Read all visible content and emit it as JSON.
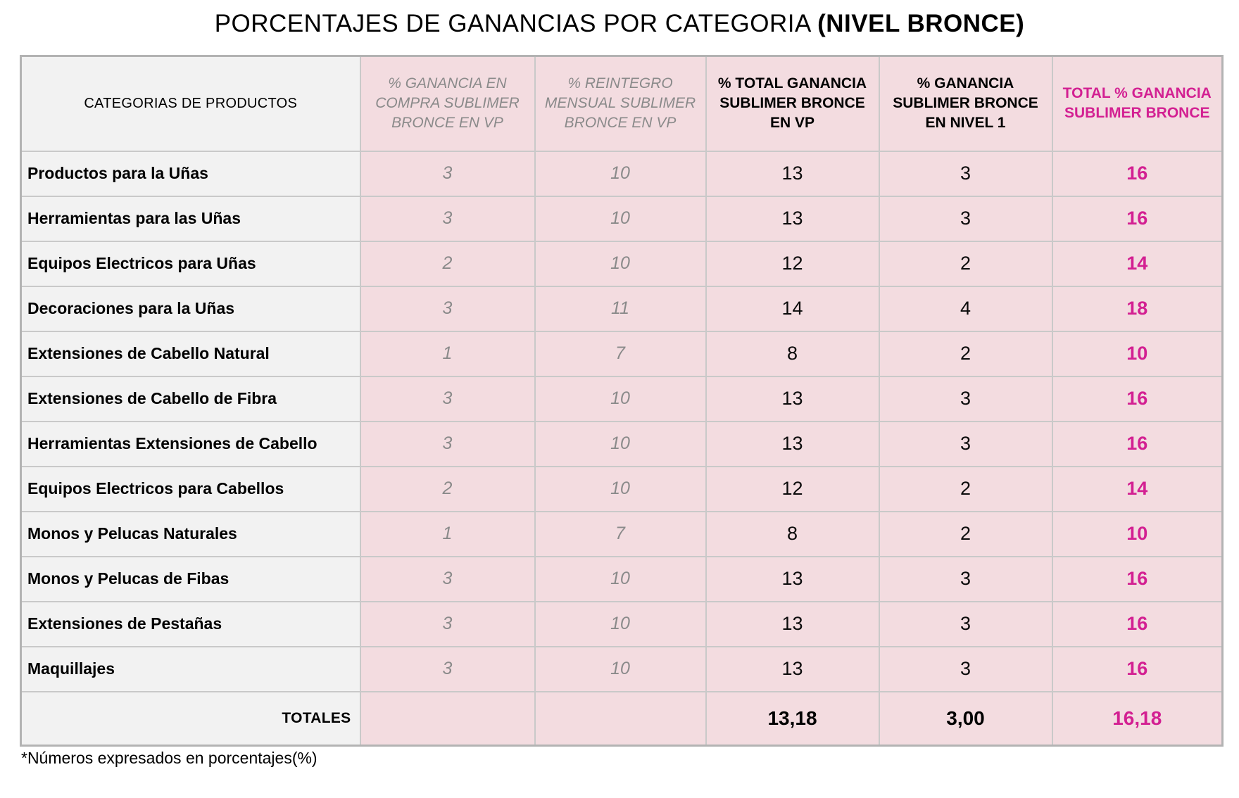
{
  "title": {
    "main": "PORCENTAJES DE GANANCIAS POR CATEGORIA",
    "level": "(NIVEL BRONCE)"
  },
  "table": {
    "headers": [
      "CATEGORIAS DE PRODUCTOS",
      "% GANANCIA EN\nCOMPRA  SUBLIMER\nBRONCE EN VP",
      "% REINTEGRO\nMENSUAL  SUBLIMER\nBRONCE EN VP",
      "% TOTAL GANANCIA\nSUBLIMER BRONCE\nEN VP",
      "% GANANCIA\nSUBLIMER BRONCE\nEN NIVEL 1",
      "TOTAL % GANANCIA\nSUBLIMER BRONCE"
    ],
    "totals": {
      "label": "TOTALES",
      "total_vp": "13,18",
      "nivel1": "3,00",
      "total": "16,18"
    }
  },
  "chart_data": {
    "type": "table",
    "title": "PORCENTAJES DE GANANCIAS POR CATEGORIA (NIVEL BRONCE)",
    "columns": [
      "CATEGORIAS DE PRODUCTOS",
      "% GANANCIA EN COMPRA SUBLIMER BRONCE EN VP",
      "% REINTEGRO MENSUAL SUBLIMER BRONCE EN VP",
      "% TOTAL GANANCIA SUBLIMER BRONCE EN VP",
      "% GANANCIA SUBLIMER BRONCE EN NIVEL 1",
      "TOTAL % GANANCIA SUBLIMER BRONCE"
    ],
    "rows": [
      [
        "Productos para la Uñas",
        3,
        10,
        13,
        3,
        16
      ],
      [
        "Herramientas para las Uñas",
        3,
        10,
        13,
        3,
        16
      ],
      [
        "Equipos Electricos para Uñas",
        2,
        10,
        12,
        2,
        14
      ],
      [
        "Decoraciones para la Uñas",
        3,
        11,
        14,
        4,
        18
      ],
      [
        "Extensiones de Cabello Natural",
        1,
        7,
        8,
        2,
        10
      ],
      [
        "Extensiones de Cabello de Fibra",
        3,
        10,
        13,
        3,
        16
      ],
      [
        "Herramientas Extensiones de Cabello",
        3,
        10,
        13,
        3,
        16
      ],
      [
        "Equipos Electricos para Cabellos",
        2,
        10,
        12,
        2,
        14
      ],
      [
        "Monos y Pelucas Naturales",
        1,
        7,
        8,
        2,
        10
      ],
      [
        "Monos y Pelucas de Fibas",
        3,
        10,
        13,
        3,
        16
      ],
      [
        "Extensiones de Pestañas",
        3,
        10,
        13,
        3,
        16
      ],
      [
        "Maquillajes",
        3,
        10,
        13,
        3,
        16
      ]
    ],
    "totals_row": [
      "TOTALES",
      null,
      null,
      "13,18",
      "3,00",
      "16,18"
    ],
    "units": "percent"
  },
  "footnote": "*Números expresados en porcentajes(%)",
  "colors": {
    "accent_magenta": "#d32092",
    "pink_cell_bg": "#f3dce0",
    "gray_cell_bg": "#f2f2f2",
    "muted_text": "#8a8a8a",
    "border": "#c9c9c9"
  }
}
